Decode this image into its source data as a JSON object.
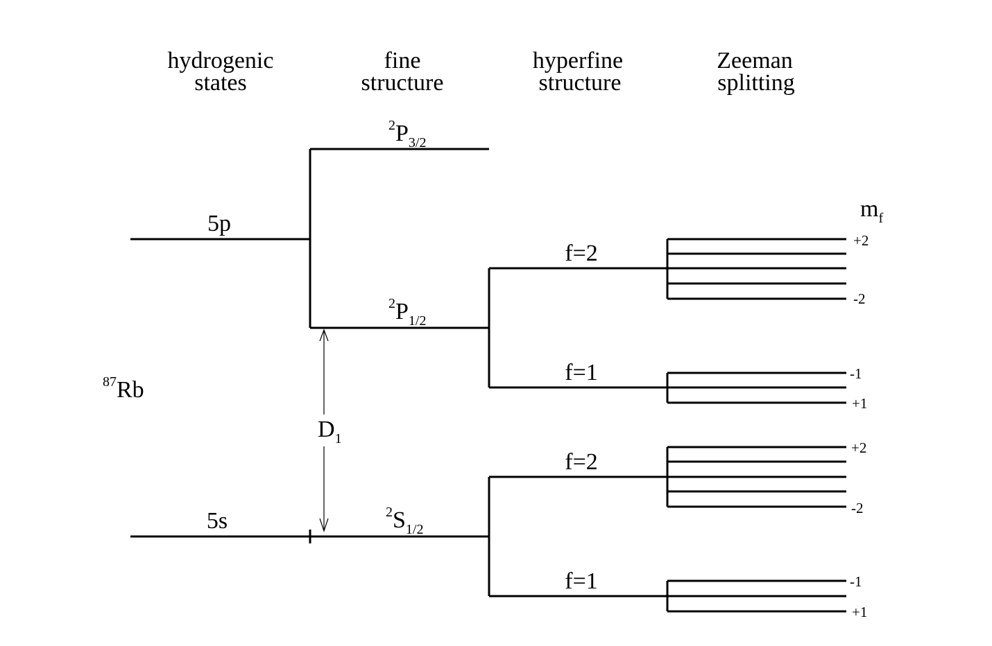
{
  "headers": {
    "hydrogenic": [
      "hydrogenic",
      "states"
    ],
    "fine": [
      "fine",
      "structure"
    ],
    "hyperfine": [
      "hyperfine",
      "structure"
    ],
    "zeeman": [
      "Zeeman",
      "splitting"
    ]
  },
  "atom": {
    "mass": "87",
    "symbol": "Rb"
  },
  "hydrogenic_states": {
    "upper": "5p",
    "lower": "5s"
  },
  "fine_structure": {
    "p32": {
      "sup": "2",
      "main": "P",
      "sub": "3/2"
    },
    "p12": {
      "sup": "2",
      "main": "P",
      "sub": "1/2"
    },
    "s12": {
      "sup": "2",
      "main": "S",
      "sub": "1/2"
    }
  },
  "transition": {
    "main": "D",
    "sub": "1"
  },
  "hyperfine_levels": {
    "p_upper": "f=2",
    "p_lower": "f=1",
    "s_upper": "f=2",
    "s_lower": "f=1"
  },
  "mf_label": {
    "main": "m",
    "sub": "f"
  },
  "zeeman_labels": {
    "p_f2_top": "+2",
    "p_f2_bottom": "-2",
    "p_f1_top": "-1",
    "p_f1_bottom": "+1",
    "s_f2_top": "+2",
    "s_f2_bottom": "-2",
    "s_f1_top": "-1",
    "s_f1_bottom": "+1"
  }
}
